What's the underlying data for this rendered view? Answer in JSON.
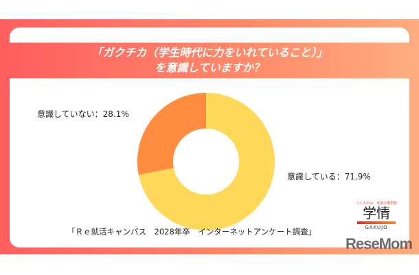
{
  "title_lines": [
    "「ガクチカ（学生時代に力をいれていること）」",
    "を意識していますか？"
  ],
  "source": "「Ｒｅ就活キャンパス　2028年卒　インターネットアンケート調査」",
  "logo": {
    "tagline": "つくるのは、未来の選択肢",
    "name": "学情",
    "romaji": "GAKUJO"
  },
  "watermark": "ReseMom",
  "chart_data": {
    "type": "pie",
    "donut": true,
    "title": "「ガクチカ（学生時代に力をいれていること）」を意識していますか？",
    "slices": [
      {
        "label": "意識している：71.9%",
        "value": 71.9,
        "color": "#ffd95a"
      },
      {
        "label": "意識していない：28.1%",
        "value": 28.1,
        "color": "#ff8c3f"
      }
    ]
  }
}
